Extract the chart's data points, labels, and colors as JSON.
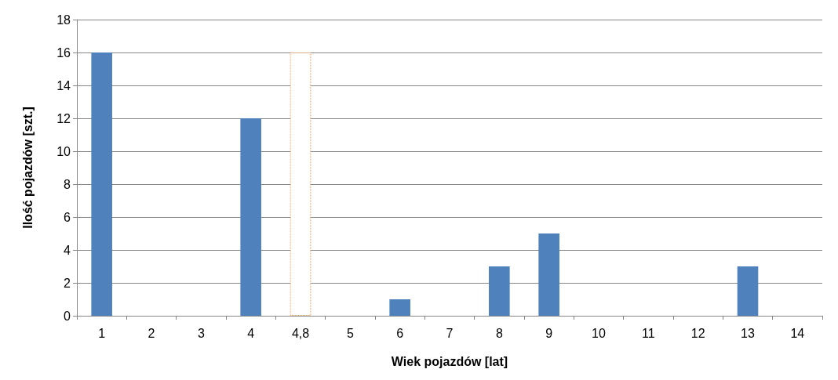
{
  "chart_data": {
    "type": "bar",
    "xlabel": "Wiek pojazdów [lat]",
    "ylabel": "Ilość pojazdów [szt.]",
    "categories": [
      "1",
      "2",
      "3",
      "4",
      "4,8",
      "5",
      "6",
      "7",
      "8",
      "9",
      "10",
      "11",
      "12",
      "13",
      "14"
    ],
    "series": [
      {
        "color": "#4f81bd",
        "values": [
          16,
          0,
          0,
          12,
          null,
          0,
          1,
          0,
          3,
          5,
          0,
          0,
          0,
          3,
          0
        ]
      },
      {
        "color": "#f79646",
        "line_style": "dotted",
        "values": [
          null,
          null,
          null,
          null,
          16,
          null,
          null,
          null,
          null,
          null,
          null,
          null,
          null,
          null,
          null
        ]
      }
    ],
    "ylim": [
      0,
      18
    ],
    "yticks": [
      0,
      2,
      4,
      6,
      8,
      10,
      12,
      14,
      16,
      18
    ],
    "grid": "y"
  }
}
